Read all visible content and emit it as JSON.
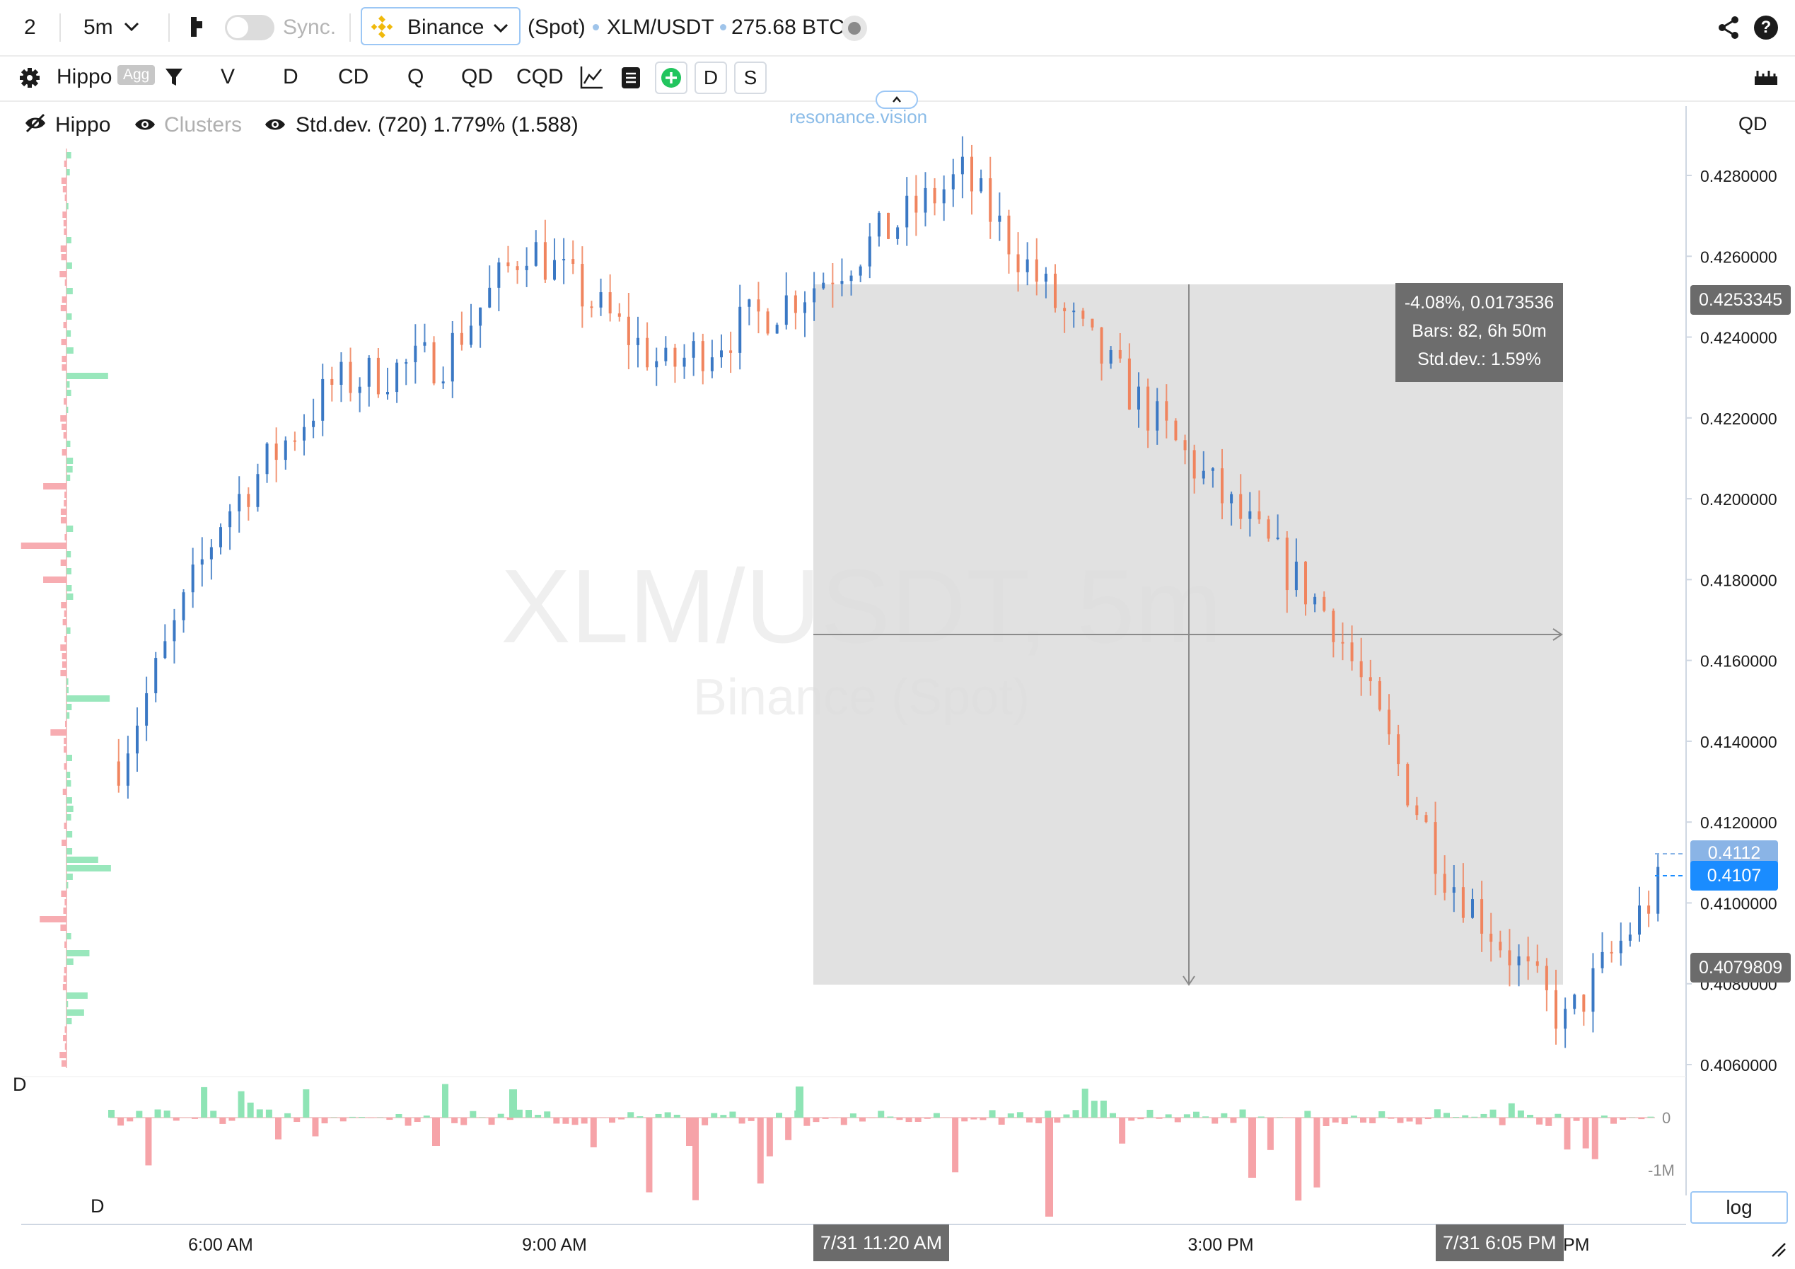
{
  "top_bar": {
    "layout_number": "2",
    "interval": "5m",
    "sync_label": "Sync.",
    "exchange": "Binance",
    "market": "(Spot)",
    "symbol": "XLM/USDT",
    "volume_24h": "275.68 BTC"
  },
  "toolbar": {
    "preset": "Hippo",
    "agg_badge": "Agg",
    "buttons": [
      "V",
      "D",
      "CD",
      "Q",
      "QD",
      "CQD"
    ],
    "boxed_buttons": [
      "D",
      "S"
    ]
  },
  "legend": {
    "hippo": "Hippo",
    "clusters": "Clusters",
    "stddev": "Std.dev. (720) 1.779% (1.588)"
  },
  "watermark": {
    "brand": "resonance.vision",
    "title": "XLM/USDT, 5m",
    "subtitle": "Binance (Spot)"
  },
  "price_axis": {
    "label": "QD",
    "ticks": [
      "0.4280000",
      "0.4260000",
      "0.4240000",
      "0.4220000",
      "0.4200000",
      "0.4180000",
      "0.4160000",
      "0.4140000",
      "0.4120000",
      "0.4100000",
      "0.4080000",
      "0.4060000"
    ],
    "tags": {
      "range_top": "0.4253345",
      "prev_price": "0.4112",
      "last_price": "0.4107",
      "range_bottom": "0.4079809"
    }
  },
  "measure": {
    "change": "-4.08%, 0.0173536",
    "bars": "Bars: 82, 6h 50m",
    "stddev": "Std.dev.: 1.59%"
  },
  "delta_pane": {
    "label": "D",
    "label2": "D",
    "axis_ticks": [
      "0",
      "-1M"
    ]
  },
  "time_axis": {
    "labels": [
      "6:00 AM",
      "9:00 AM",
      "3:00 PM"
    ],
    "partial_label": "PM",
    "crosshair_start": "7/31 11:20 AM",
    "crosshair_end": "7/31 6:05 PM"
  },
  "log_button": "log",
  "colors": {
    "up": "#3a78c4",
    "down": "#f0845e",
    "accent": "#1a8cff",
    "delta_up": "#8ee4b5",
    "delta_down": "#f6a3a8",
    "binance": "#f0b90b"
  },
  "chart_data": {
    "type": "bar",
    "title": "XLM/USDT, 5m",
    "subtitle": "Binance (Spot)",
    "y_range": [
      0.4055,
      0.4292
    ],
    "measurement_range": {
      "high": 0.4253345,
      "low": 0.4079809,
      "change_pct": -4.08
    },
    "approx_path": [
      {
        "x": "5:05 AM",
        "y": 0.4135
      },
      {
        "x": "6:00 AM",
        "y": 0.4195
      },
      {
        "x": "7:00 AM",
        "y": 0.4228
      },
      {
        "x": "8:00 AM",
        "y": 0.4235
      },
      {
        "x": "8:45 AM",
        "y": 0.4263
      },
      {
        "x": "10:00 AM",
        "y": 0.4232
      },
      {
        "x": "11:20 AM",
        "y": 0.4253
      },
      {
        "x": "12:40 PM",
        "y": 0.428
      },
      {
        "x": "1:30 PM",
        "y": 0.4248
      },
      {
        "x": "3:00 PM",
        "y": 0.42
      },
      {
        "x": "4:00 PM",
        "y": 0.417
      },
      {
        "x": "5:00 PM",
        "y": 0.4108
      },
      {
        "x": "6:05 PM",
        "y": 0.407
      },
      {
        "x": "7:00 PM",
        "y": 0.4107
      }
    ]
  }
}
